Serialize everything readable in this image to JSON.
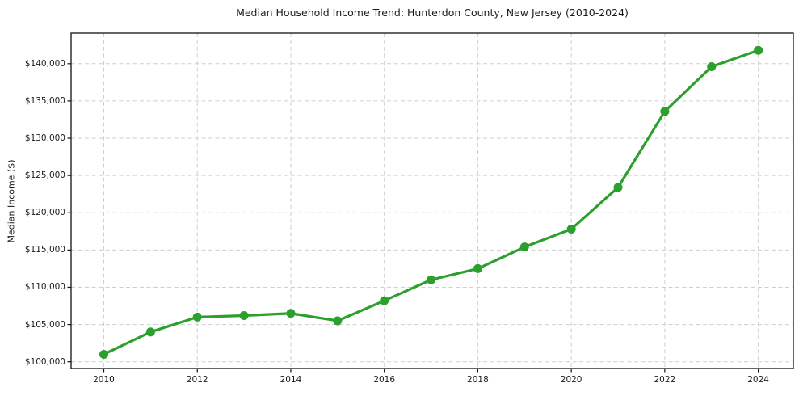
{
  "figure": {
    "title": "Median Household Income Trend: Hunterdon County, New Jersey (2010-2024)"
  },
  "chart_data": {
    "type": "line",
    "title": "Median Household Income Trend: Hunterdon County, New Jersey (2010-2024)",
    "xlabel": "",
    "ylabel": "Median Income ($)",
    "x": [
      2010,
      2011,
      2012,
      2013,
      2014,
      2015,
      2016,
      2017,
      2018,
      2019,
      2020,
      2021,
      2022,
      2023,
      2024
    ],
    "values": [
      101000,
      104000,
      106000,
      106200,
      106500,
      105500,
      108200,
      111000,
      112500,
      115400,
      117800,
      123400,
      133600,
      139600,
      141800
    ],
    "xlim": [
      2009.3,
      2024.75
    ],
    "ylim": [
      99100,
      144100
    ],
    "x_ticks": [
      2010,
      2012,
      2014,
      2016,
      2018,
      2020,
      2022,
      2024
    ],
    "x_tick_labels": [
      "2010",
      "2012",
      "2014",
      "2016",
      "2018",
      "2020",
      "2022",
      "2024"
    ],
    "y_ticks": [
      100000,
      105000,
      110000,
      115000,
      120000,
      125000,
      130000,
      135000,
      140000
    ],
    "y_tick_labels": [
      "$100,000",
      "$105,000",
      "$110,000",
      "$115,000",
      "$120,000",
      "$125,000",
      "$130,000",
      "$135,000",
      "$140,000"
    ],
    "grid": true,
    "legend_position": "none",
    "styles": {
      "line_color": "#2ca02c",
      "marker": "circle",
      "marker_radius": 5.5,
      "line_width": 3.2,
      "grid_color": "#cfcfcf",
      "grid_dash": "5 3.5",
      "axis_color": "#111111",
      "tick_color": "#111111",
      "background": "#ffffff",
      "text_color": "#1a1a1a"
    }
  }
}
